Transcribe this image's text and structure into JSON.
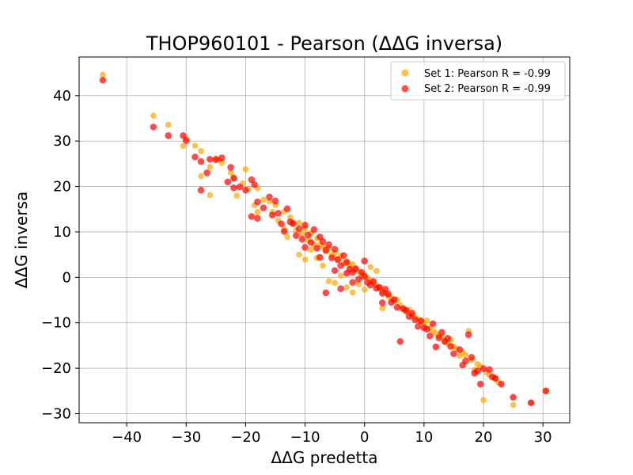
{
  "chart_data": {
    "type": "scatter",
    "title": "THOP960101 - Pearson (ΔΔG inversa)",
    "xlabel": "ΔΔG predetta",
    "ylabel": "ΔΔG inversa",
    "xlim": [
      -48,
      34.5
    ],
    "ylim": [
      -32,
      48.5
    ],
    "xticks": [
      -40,
      -30,
      -20,
      -10,
      0,
      10,
      20,
      30
    ],
    "yticks": [
      -30,
      -20,
      -10,
      0,
      10,
      20,
      30,
      40
    ],
    "xtick_labels": [
      "−40",
      "−30",
      "−20",
      "−10",
      "0",
      "10",
      "20",
      "30"
    ],
    "ytick_labels": [
      "−30",
      "−20",
      "−10",
      "0",
      "10",
      "20",
      "30",
      "40"
    ],
    "grid": true,
    "legend_position": "upper right",
    "series": [
      {
        "name": "Set 1: Pearson R = -0.99",
        "color": "#ffa500",
        "alpha": 0.7,
        "points": [
          [
            -44,
            44.6
          ],
          [
            -35.5,
            35.6
          ],
          [
            -33,
            33.6
          ],
          [
            -30.5,
            28.9
          ],
          [
            -30,
            30.5
          ],
          [
            -28.5,
            29
          ],
          [
            -27.5,
            27.8
          ],
          [
            -27.5,
            22.3
          ],
          [
            -26,
            24.3
          ],
          [
            -26,
            18.1
          ],
          [
            -25,
            26.2
          ],
          [
            -24.5,
            25.8
          ],
          [
            -24,
            25.2
          ],
          [
            -22.5,
            23
          ],
          [
            -22,
            22
          ],
          [
            -21.5,
            18
          ],
          [
            -20.5,
            20.7
          ],
          [
            -20,
            23.8
          ],
          [
            -19.5,
            19.5
          ],
          [
            -18.5,
            15.9
          ],
          [
            -18,
            14.4
          ],
          [
            -18,
            19.6
          ],
          [
            -17,
            17.1
          ],
          [
            -16,
            16.7
          ],
          [
            -15.5,
            14.4
          ],
          [
            -15,
            15.9
          ],
          [
            -14.5,
            12.5
          ],
          [
            -13.5,
            14.5
          ],
          [
            -13.5,
            10.7
          ],
          [
            -13,
            8.9
          ],
          [
            -12.5,
            13.2
          ],
          [
            -12,
            11.7
          ],
          [
            -11.5,
            10.4
          ],
          [
            -11,
            12
          ],
          [
            -11,
            5
          ],
          [
            -10.5,
            9.6
          ],
          [
            -10,
            10.8
          ],
          [
            -10,
            3.9
          ],
          [
            -9.5,
            8.1
          ],
          [
            -9,
            9.7
          ],
          [
            -9,
            6.1
          ],
          [
            -8.5,
            7.3
          ],
          [
            -8,
            8.6
          ],
          [
            -8,
            4.3
          ],
          [
            -7.5,
            7.2
          ],
          [
            -7,
            6.8
          ],
          [
            -7,
            2.6
          ],
          [
            -6.5,
            5.7
          ],
          [
            -6,
            6.4
          ],
          [
            -6,
            -0.8
          ],
          [
            -5.5,
            4.9
          ],
          [
            -5,
            5.4
          ],
          [
            -5,
            -1.2
          ],
          [
            -4.5,
            4
          ],
          [
            -4,
            4.8
          ],
          [
            -4,
            0.4
          ],
          [
            -3.5,
            3.1
          ],
          [
            -3,
            3.5
          ],
          [
            -3,
            -2.2
          ],
          [
            -2.5,
            2.6
          ],
          [
            -2,
            2.9
          ],
          [
            -2,
            -3.3
          ],
          [
            -1.5,
            1.8
          ],
          [
            -1,
            1.3
          ],
          [
            -1,
            -1.5
          ],
          [
            -0.5,
            0.3
          ],
          [
            0,
            0.6
          ],
          [
            0,
            -2.7
          ],
          [
            0.5,
            -0.1
          ],
          [
            1,
            -0.7
          ],
          [
            1,
            2.3
          ],
          [
            1.5,
            -1.2
          ],
          [
            2,
            -1.8
          ],
          [
            2,
            1.4
          ],
          [
            2.5,
            -2.3
          ],
          [
            3,
            -3.1
          ],
          [
            3,
            -6.8
          ],
          [
            3.5,
            -3.4
          ],
          [
            4,
            -4.2
          ],
          [
            4.5,
            -4.7
          ],
          [
            5,
            -5.3
          ],
          [
            5.5,
            -4.9
          ],
          [
            6,
            -6.1
          ],
          [
            6.5,
            -6.8
          ],
          [
            7,
            -7.6
          ],
          [
            7.5,
            -7.1
          ],
          [
            8,
            -8.3
          ],
          [
            8.5,
            -8.8
          ],
          [
            9,
            -9.2
          ],
          [
            9.5,
            -9.7
          ],
          [
            10,
            -10.2
          ],
          [
            10.5,
            -9.5
          ],
          [
            11,
            -11.1
          ],
          [
            11.5,
            -11.8
          ],
          [
            12,
            -12.3
          ],
          [
            12.5,
            -12.8
          ],
          [
            13,
            -13.1
          ],
          [
            13.5,
            -14.2
          ],
          [
            14,
            -14.6
          ],
          [
            14.5,
            -13.7
          ],
          [
            15,
            -15.2
          ],
          [
            15.5,
            -15.8
          ],
          [
            16,
            -17.3
          ],
          [
            16.5,
            -16.6
          ],
          [
            17,
            -17.1
          ],
          [
            17.5,
            -11.8
          ],
          [
            18,
            -18.2
          ],
          [
            18.5,
            -20.4
          ],
          [
            19,
            -19.1
          ],
          [
            19.5,
            -19.6
          ],
          [
            20,
            -27
          ],
          [
            20.5,
            -20.9
          ],
          [
            21,
            -21.5
          ],
          [
            22,
            -22.3
          ],
          [
            22.5,
            -23.1
          ],
          [
            25,
            -28.1
          ],
          [
            28,
            -27.6
          ],
          [
            30.5,
            -25
          ]
        ]
      },
      {
        "name": "Set 2: Pearson R = -0.99",
        "color": "#ff0000",
        "alpha": 0.7,
        "points": [
          [
            -44,
            43.4
          ],
          [
            -35.5,
            33.1
          ],
          [
            -33,
            31.2
          ],
          [
            -30.5,
            31.2
          ],
          [
            -30,
            30.1
          ],
          [
            -28.5,
            26.5
          ],
          [
            -27.5,
            25.5
          ],
          [
            -27.5,
            19.2
          ],
          [
            -26.5,
            23
          ],
          [
            -26,
            26
          ],
          [
            -25,
            25.9
          ],
          [
            -24,
            26.3
          ],
          [
            -23,
            21
          ],
          [
            -22.5,
            24.2
          ],
          [
            -22,
            21.8
          ],
          [
            -22,
            19.7
          ],
          [
            -21,
            19.9
          ],
          [
            -20,
            19.2
          ],
          [
            -19,
            13.4
          ],
          [
            -19,
            21.5
          ],
          [
            -18.5,
            20.4
          ],
          [
            -18,
            13
          ],
          [
            -18,
            16.6
          ],
          [
            -17,
            15.3
          ],
          [
            -16,
            17.7
          ],
          [
            -15.5,
            13.7
          ],
          [
            -15,
            16.8
          ],
          [
            -14.5,
            14.1
          ],
          [
            -14,
            11.8
          ],
          [
            -13.5,
            10.1
          ],
          [
            -13,
            15.1
          ],
          [
            -12.5,
            12.2
          ],
          [
            -12,
            11.9
          ],
          [
            -11.5,
            9.2
          ],
          [
            -11,
            10.7
          ],
          [
            -10.5,
            8.4
          ],
          [
            -10,
            11.5
          ],
          [
            -10,
            6.6
          ],
          [
            -9.5,
            9.3
          ],
          [
            -9,
            7.7
          ],
          [
            -8.5,
            10.5
          ],
          [
            -8,
            6.4
          ],
          [
            -7.5,
            8.9
          ],
          [
            -7.5,
            4.4
          ],
          [
            -7,
            7.9
          ],
          [
            -6.5,
            6
          ],
          [
            -6.5,
            -3.4
          ],
          [
            -6,
            7.2
          ],
          [
            -5.5,
            4.3
          ],
          [
            -5,
            6.2
          ],
          [
            -5,
            1.5
          ],
          [
            -4.5,
            3.9
          ],
          [
            -4,
            2.6
          ],
          [
            -4,
            -2.5
          ],
          [
            -3.5,
            4.8
          ],
          [
            -3,
            0.9
          ],
          [
            -3,
            3.3
          ],
          [
            -2.5,
            1.8
          ],
          [
            -2,
            1.1
          ],
          [
            -2,
            -1.1
          ],
          [
            -1.5,
            1.9
          ],
          [
            -1,
            -0.4
          ],
          [
            -0.5,
            1.1
          ],
          [
            0,
            0.2
          ],
          [
            0,
            3.6
          ],
          [
            0.5,
            -1.1
          ],
          [
            1,
            -1.7
          ],
          [
            1.5,
            -0.9
          ],
          [
            2,
            -2.4
          ],
          [
            2.5,
            -2.2
          ],
          [
            3,
            -3.5
          ],
          [
            3,
            -5.6
          ],
          [
            3.5,
            -2.6
          ],
          [
            4,
            -3.7
          ],
          [
            4.5,
            -5.5
          ],
          [
            5,
            -4.9
          ],
          [
            5.5,
            -6.6
          ],
          [
            6,
            -14.1
          ],
          [
            6.5,
            -6.9
          ],
          [
            7,
            -7.3
          ],
          [
            7.5,
            -8.6
          ],
          [
            8,
            -7.9
          ],
          [
            8.5,
            -9.3
          ],
          [
            9,
            -10.8
          ],
          [
            9.5,
            -9.6
          ],
          [
            10,
            -11.1
          ],
          [
            10.5,
            -11.4
          ],
          [
            11,
            -12.9
          ],
          [
            11.5,
            -10.2
          ],
          [
            12,
            -15.3
          ],
          [
            12.5,
            -13.3
          ],
          [
            13,
            -12.1
          ],
          [
            13.5,
            -14.1
          ],
          [
            14,
            -13.4
          ],
          [
            14.5,
            -15.2
          ],
          [
            15,
            -16.8
          ],
          [
            16,
            -15.9
          ],
          [
            16.5,
            -19.3
          ],
          [
            17,
            -18.4
          ],
          [
            17.5,
            -12.6
          ],
          [
            18,
            -17.6
          ],
          [
            18.5,
            -21.1
          ],
          [
            19,
            -20.6
          ],
          [
            19.5,
            -23.5
          ],
          [
            20,
            -20.1
          ],
          [
            21,
            -20.3
          ],
          [
            21.5,
            -21.9
          ],
          [
            22,
            -22.2
          ],
          [
            23,
            -23.5
          ],
          [
            25,
            -26.4
          ],
          [
            28,
            -27.6
          ],
          [
            30.5,
            -25
          ]
        ]
      }
    ]
  }
}
